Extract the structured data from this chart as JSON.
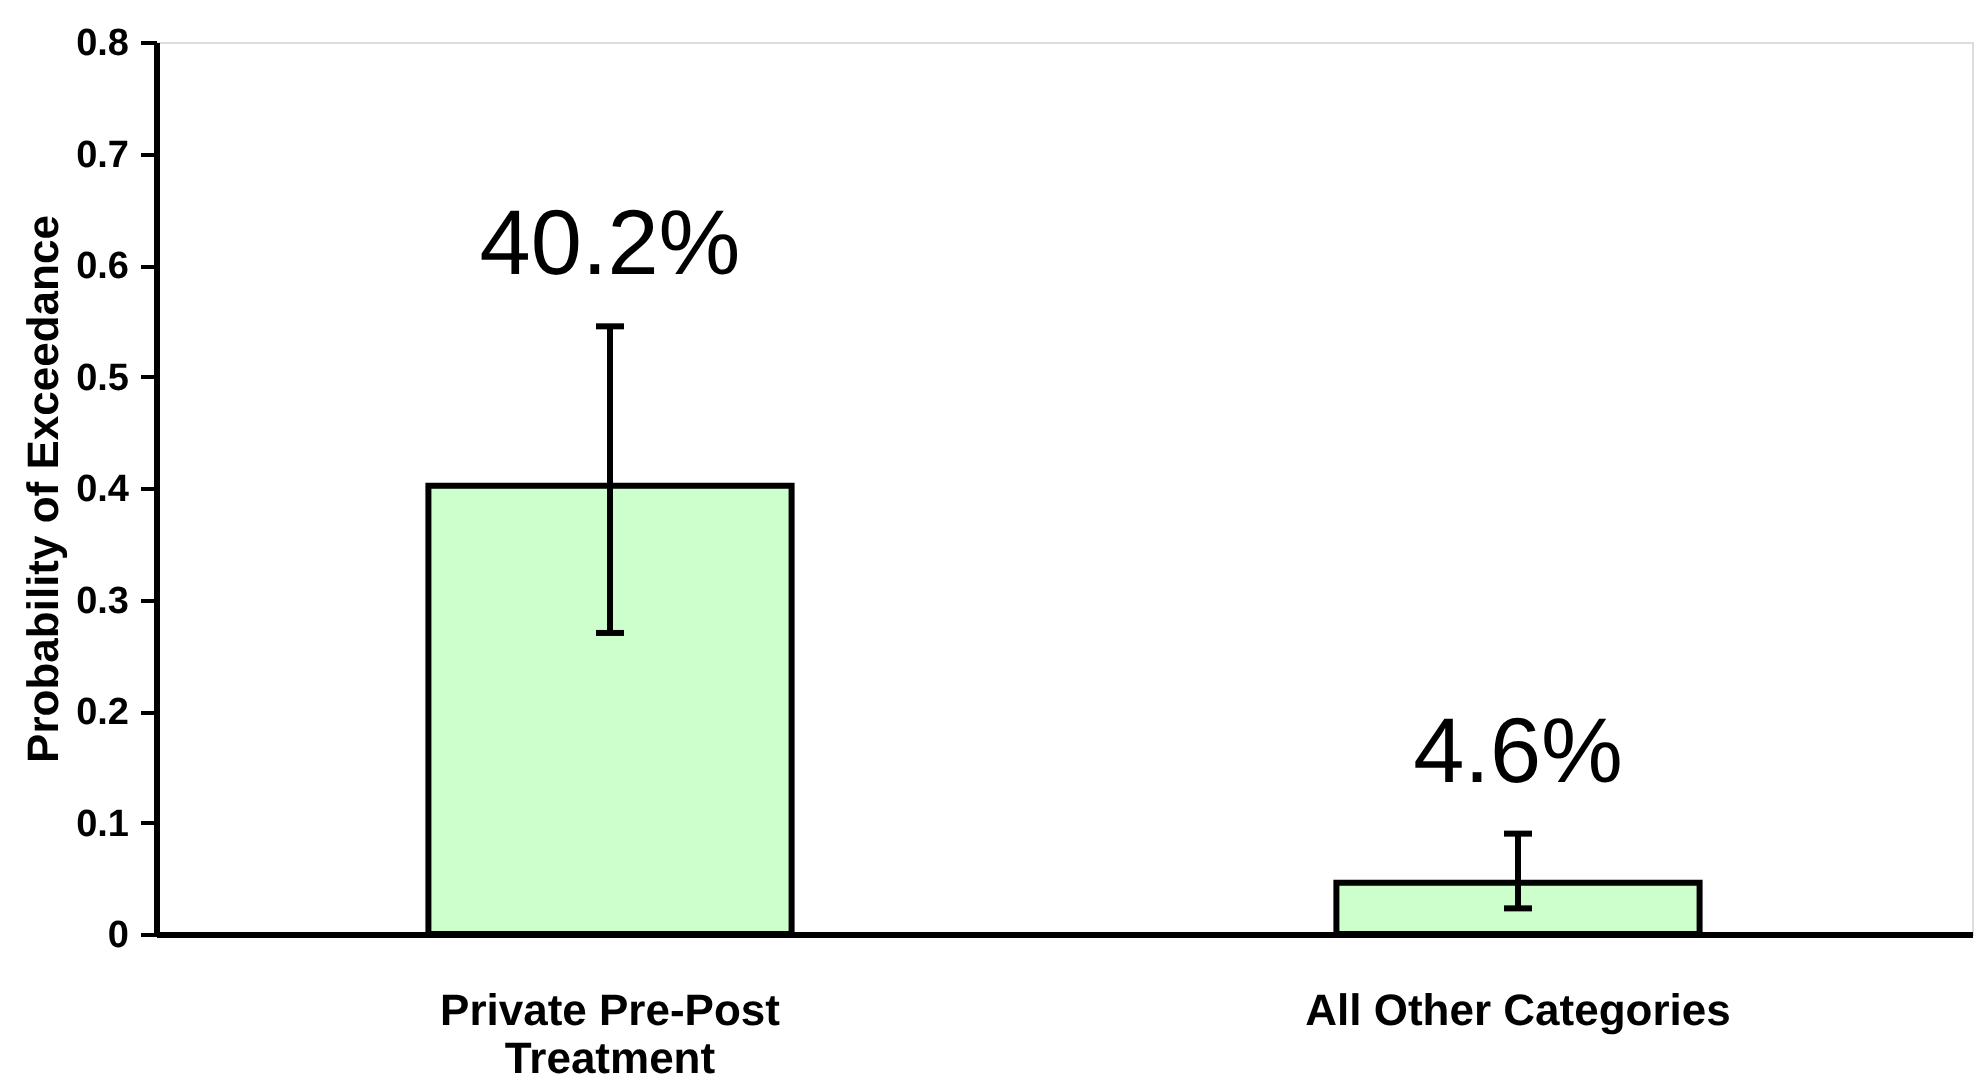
{
  "chart_data": {
    "type": "bar",
    "ylabel": "Probability of Exceedance",
    "categories": [
      "Private Pre-Post Treatment",
      "All Other Categories"
    ],
    "values": [
      0.402,
      0.046
    ],
    "errors": [
      [
        0.27,
        0.545
      ],
      [
        0.023,
        0.09
      ]
    ],
    "value_labels": [
      "40.2%",
      "4.6%"
    ],
    "color": "#ccffcc",
    "ylim": [
      0,
      0.8
    ],
    "yticks": [
      0,
      0.1,
      0.2,
      0.3,
      0.4,
      0.5,
      0.6,
      0.7,
      0.8
    ],
    "grid": false
  }
}
